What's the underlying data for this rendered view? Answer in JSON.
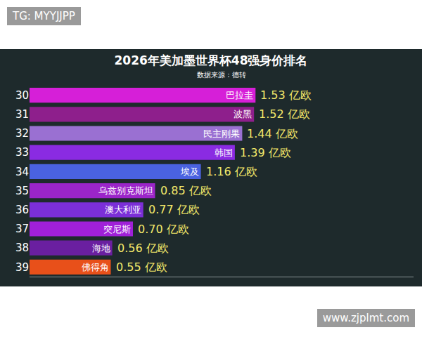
{
  "chart_data": {
    "type": "bar",
    "orientation": "horizontal",
    "title": "2026年美加墨世界杯48强身价排名",
    "subtitle": "数据来源：德转",
    "categories": [
      "巴拉圭",
      "波黑",
      "民主刚果",
      "韩国",
      "埃及",
      "乌兹别克斯坦",
      "澳大利亚",
      "突尼斯",
      "海地",
      "佛得角"
    ],
    "ranks": [
      30,
      31,
      32,
      33,
      34,
      35,
      36,
      37,
      38,
      39
    ],
    "values": [
      1.53,
      1.52,
      1.44,
      1.39,
      1.16,
      0.85,
      0.77,
      0.7,
      0.56,
      0.55
    ],
    "value_labels": [
      "1.53 亿欧",
      "1.52 亿欧",
      "1.44 亿欧",
      "1.39 亿欧",
      "1.16 亿欧",
      "0.85 亿欧",
      "0.77 亿欧",
      "0.70 亿欧",
      "0.56 亿欧",
      "0.55 亿欧"
    ],
    "colors": [
      "#d61fd8",
      "#8e1f8c",
      "#9a70d2",
      "#8a2be2",
      "#4a62e0",
      "#9b25c9",
      "#7b2fd8",
      "#a020d8",
      "#6a1fa0",
      "#e8501a"
    ],
    "xlim": [
      0,
      2.6
    ],
    "data_labels": true,
    "tick_labels": "y",
    "grid": false,
    "watermarks": [
      "TG: MYYJJPP",
      "www.zjplmt.com"
    ]
  }
}
